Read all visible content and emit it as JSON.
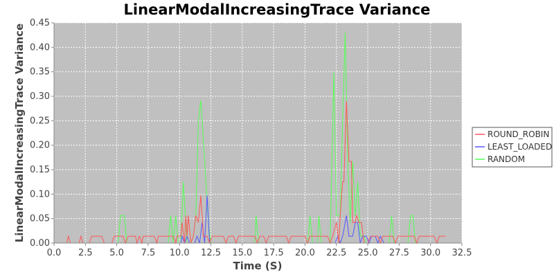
{
  "chart_data": {
    "type": "line",
    "title": "LinearModalIncreasingTrace Variance",
    "xlabel": "Time (S)",
    "ylabel": "LinearModalIncreasingTrace Variance",
    "xlim": [
      0,
      32.5
    ],
    "ylim": [
      0,
      0.45
    ],
    "x_ticks": [
      "0.0",
      "2.5",
      "5.0",
      "7.5",
      "10.0",
      "12.5",
      "15.0",
      "17.5",
      "20.0",
      "22.5",
      "25.0",
      "27.5",
      "30.0",
      "32.5"
    ],
    "y_ticks": [
      "0.00",
      "0.05",
      "0.10",
      "0.15",
      "0.20",
      "0.25",
      "0.30",
      "0.35",
      "0.40",
      "0.45"
    ],
    "grid": true,
    "legend_position": "right",
    "series": [
      {
        "name": "ROUND_ROBIN",
        "color": "#ff5555",
        "points": [
          [
            0,
            0
          ],
          [
            1.0,
            0
          ],
          [
            1.15,
            0.014
          ],
          [
            1.3,
            0
          ],
          [
            2.0,
            0
          ],
          [
            2.15,
            0.014
          ],
          [
            2.3,
            0
          ],
          [
            2.8,
            0
          ],
          [
            3.0,
            0.014
          ],
          [
            3.8,
            0.014
          ],
          [
            4.0,
            0
          ],
          [
            4.6,
            0
          ],
          [
            4.8,
            0.014
          ],
          [
            5.5,
            0.014
          ],
          [
            5.7,
            0
          ],
          [
            5.9,
            0.014
          ],
          [
            6.5,
            0.014
          ],
          [
            6.6,
            0
          ],
          [
            6.8,
            0.014
          ],
          [
            7.0,
            0
          ],
          [
            7.1,
            0.014
          ],
          [
            8.0,
            0.014
          ],
          [
            8.2,
            0
          ],
          [
            8.3,
            0.014
          ],
          [
            9.5,
            0.014
          ],
          [
            9.7,
            0
          ],
          [
            9.8,
            0.014
          ],
          [
            10.1,
            0.014
          ],
          [
            10.2,
            0.042
          ],
          [
            10.4,
            0
          ],
          [
            10.5,
            0.056
          ],
          [
            10.6,
            0.014
          ],
          [
            10.7,
            0.056
          ],
          [
            10.9,
            0
          ],
          [
            11.1,
            0.014
          ],
          [
            11.3,
            0.056
          ],
          [
            11.5,
            0.042
          ],
          [
            11.7,
            0.097
          ],
          [
            11.9,
            0.014
          ],
          [
            12.2,
            0.014
          ],
          [
            12.4,
            0
          ],
          [
            12.6,
            0.014
          ],
          [
            13.5,
            0.014
          ],
          [
            13.7,
            0
          ],
          [
            13.9,
            0.014
          ],
          [
            14.3,
            0.014
          ],
          [
            14.5,
            0
          ],
          [
            14.7,
            0.014
          ],
          [
            16.0,
            0.014
          ],
          [
            16.2,
            0
          ],
          [
            16.4,
            0.014
          ],
          [
            16.7,
            0.014
          ],
          [
            16.9,
            0
          ],
          [
            17.1,
            0.014
          ],
          [
            18.5,
            0.014
          ],
          [
            18.7,
            0
          ],
          [
            18.9,
            0.014
          ],
          [
            20.0,
            0.014
          ],
          [
            20.2,
            0
          ],
          [
            20.4,
            0.014
          ],
          [
            21.8,
            0.014
          ],
          [
            22.0,
            0
          ],
          [
            22.2,
            0.014
          ],
          [
            22.5,
            0.042
          ],
          [
            22.7,
            0
          ],
          [
            22.8,
            0.056
          ],
          [
            23.0,
            0.125
          ],
          [
            23.1,
            0.125
          ],
          [
            23.3,
            0.29
          ],
          [
            23.5,
            0.167
          ],
          [
            23.7,
            0.167
          ],
          [
            23.8,
            0.042
          ],
          [
            24.0,
            0.042
          ],
          [
            24.1,
            0.056
          ],
          [
            24.3,
            0.042
          ],
          [
            24.5,
            0.042
          ],
          [
            24.7,
            0
          ],
          [
            25.0,
            0
          ],
          [
            25.2,
            0.014
          ],
          [
            25.8,
            0.014
          ],
          [
            26.0,
            0
          ],
          [
            26.2,
            0.014
          ],
          [
            27.0,
            0.014
          ],
          [
            27.2,
            0
          ],
          [
            27.4,
            0.014
          ],
          [
            28.7,
            0.014
          ],
          [
            28.9,
            0
          ],
          [
            29.1,
            0.014
          ],
          [
            30.3,
            0.014
          ],
          [
            30.5,
            0
          ],
          [
            30.7,
            0.014
          ],
          [
            31.2,
            0.014
          ]
        ]
      },
      {
        "name": "LEAST_LOADED",
        "color": "#5555ff",
        "points": [
          [
            0,
            0
          ],
          [
            10.1,
            0
          ],
          [
            10.2,
            0.014
          ],
          [
            10.4,
            0
          ],
          [
            10.6,
            0.014
          ],
          [
            10.8,
            0
          ],
          [
            11.2,
            0
          ],
          [
            11.4,
            0.014
          ],
          [
            11.6,
            0
          ],
          [
            11.8,
            0.042
          ],
          [
            12.0,
            0
          ],
          [
            12.2,
            0.097
          ],
          [
            12.4,
            0
          ],
          [
            22.4,
            0
          ],
          [
            22.6,
            0.014
          ],
          [
            22.8,
            0
          ],
          [
            23.0,
            0.014
          ],
          [
            23.3,
            0.056
          ],
          [
            23.5,
            0.014
          ],
          [
            23.8,
            0.014
          ],
          [
            24.0,
            0.042
          ],
          [
            24.2,
            0.042
          ],
          [
            24.4,
            0
          ],
          [
            24.6,
            0.014
          ],
          [
            24.9,
            0.014
          ],
          [
            25.1,
            0
          ],
          [
            25.3,
            0.014
          ],
          [
            25.6,
            0.014
          ],
          [
            25.8,
            0
          ],
          [
            26.0,
            0.014
          ],
          [
            26.3,
            0
          ],
          [
            31.2,
            0
          ]
        ]
      },
      {
        "name": "RANDOM",
        "color": "#55ff55",
        "points": [
          [
            0,
            0
          ],
          [
            5.1,
            0
          ],
          [
            5.3,
            0.056
          ],
          [
            5.6,
            0.056
          ],
          [
            5.8,
            0
          ],
          [
            9.1,
            0
          ],
          [
            9.3,
            0.056
          ],
          [
            9.5,
            0
          ],
          [
            9.7,
            0.056
          ],
          [
            9.9,
            0
          ],
          [
            10.1,
            0
          ],
          [
            10.3,
            0.125
          ],
          [
            10.6,
            0
          ],
          [
            10.9,
            0
          ],
          [
            11.1,
            0.014
          ],
          [
            11.3,
            0.056
          ],
          [
            11.5,
            0.25
          ],
          [
            11.7,
            0.292
          ],
          [
            12.0,
            0.167
          ],
          [
            12.3,
            0.042
          ],
          [
            12.5,
            0
          ],
          [
            16.0,
            0
          ],
          [
            16.1,
            0.056
          ],
          [
            16.3,
            0
          ],
          [
            20.2,
            0
          ],
          [
            20.4,
            0.056
          ],
          [
            20.6,
            0
          ],
          [
            21.0,
            0
          ],
          [
            21.1,
            0.056
          ],
          [
            21.3,
            0
          ],
          [
            22.0,
            0
          ],
          [
            22.3,
            0.35
          ],
          [
            22.5,
            0.056
          ],
          [
            22.8,
            0.056
          ],
          [
            23.0,
            0.25
          ],
          [
            23.2,
            0.43
          ],
          [
            23.4,
            0.167
          ],
          [
            23.6,
            0.042
          ],
          [
            23.8,
            0.167
          ],
          [
            24.0,
            0.056
          ],
          [
            24.2,
            0.125
          ],
          [
            24.4,
            0.014
          ],
          [
            24.7,
            0.014
          ],
          [
            24.9,
            0
          ],
          [
            26.7,
            0
          ],
          [
            26.9,
            0.056
          ],
          [
            27.1,
            0
          ],
          [
            28.2,
            0
          ],
          [
            28.4,
            0.056
          ],
          [
            28.6,
            0.056
          ],
          [
            28.8,
            0
          ],
          [
            31.2,
            0
          ]
        ]
      }
    ]
  }
}
